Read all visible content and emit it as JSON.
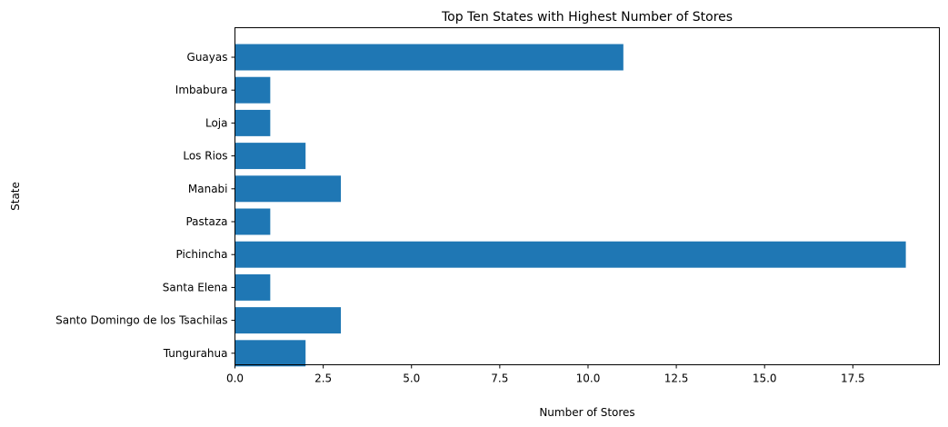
{
  "chart_data": {
    "type": "bar",
    "orientation": "horizontal",
    "title": "Top Ten States with Highest Number of Stores",
    "xlabel": "Number of Stores",
    "ylabel": "State",
    "categories": [
      "Guayas",
      "Imbabura",
      "Loja",
      "Los Rios",
      "Manabi",
      "Pastaza",
      "Pichincha",
      "Santa Elena",
      "Santo Domingo de los Tsachilas",
      "Tungurahua"
    ],
    "values": [
      11,
      1,
      1,
      2,
      3,
      1,
      19,
      1,
      3,
      2
    ],
    "xlim": [
      0,
      19.95
    ],
    "xticks": [
      0,
      2.5,
      5,
      7.5,
      10,
      12.5,
      15,
      17.5
    ],
    "xtick_labels": [
      "0.0",
      "2.5",
      "5.0",
      "7.5",
      "10.0",
      "12.5",
      "15.0",
      "17.5"
    ],
    "grid": false,
    "bar_color": "#1f77b4"
  }
}
